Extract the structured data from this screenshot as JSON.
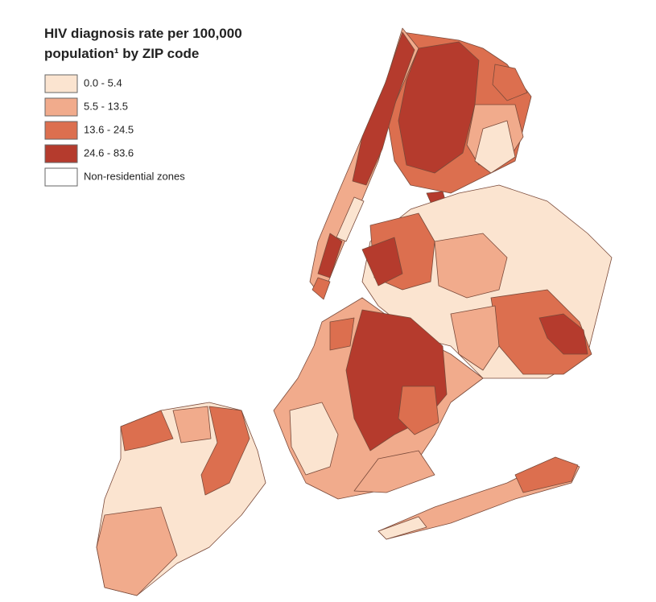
{
  "header": {
    "title_lines": [
      "HIV diagnosis rate per 100,000",
      "population¹ by ZIP code"
    ]
  },
  "legend": [
    {
      "label": "0.0 - 5.4",
      "color": "#fbe4d0"
    },
    {
      "label": "5.5 - 13.5",
      "color": "#f1ab8c"
    },
    {
      "label": "13.6 - 24.5",
      "color": "#dc6f4f"
    },
    {
      "label": "24.6 - 83.6",
      "color": "#b53b2d"
    },
    {
      "label": "Non-residential zones",
      "color": "#ffffff"
    }
  ]
}
